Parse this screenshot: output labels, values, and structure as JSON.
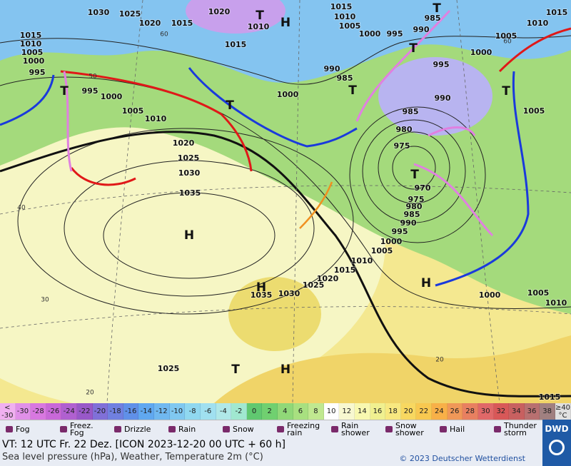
{
  "map": {
    "pressure_labels": [
      1030,
      1025,
      1020,
      1010,
      1015,
      1020,
      1015,
      1010,
      1005,
      1000,
      995,
      995,
      1000,
      1005,
      1010,
      1015,
      1015,
      1010,
      1005,
      1000,
      995,
      990,
      985,
      990,
      985,
      1000,
      990,
      985,
      980,
      975,
      970,
      975,
      980,
      985,
      990,
      995,
      1000,
      1005,
      1010,
      1015,
      1020,
      1025,
      1030,
      1035,
      1020,
      1025,
      1030,
      1035,
      1025,
      1015,
      1000,
      1005,
      1010,
      1000,
      1005,
      1010,
      1015,
      1005,
      995
    ],
    "systems": [
      "H",
      "H",
      "H",
      "H",
      "H",
      "T",
      "T",
      "T",
      "T",
      "T",
      "T",
      "T",
      "T",
      "T"
    ],
    "isotherm_labels": [
      40,
      30,
      20,
      20,
      50,
      60,
      60
    ]
  },
  "scale": {
    "under": {
      "symbol": "<",
      "label": "-30",
      "color": "#f0b0f0"
    },
    "values": [
      -30,
      -28,
      -26,
      -24,
      -22,
      -20,
      -18,
      -16,
      -14,
      -12,
      -10,
      -8,
      -6,
      -4,
      -2,
      0,
      2,
      4,
      6,
      8,
      10,
      12,
      14,
      16,
      18,
      20,
      22,
      24,
      26,
      28,
      30,
      32,
      34,
      36,
      38
    ],
    "colors": [
      "#e090e8",
      "#d878e0",
      "#c868d8",
      "#b060d0",
      "#9858c8",
      "#8070d8",
      "#7080e0",
      "#6090e8",
      "#60a8f0",
      "#70b8f0",
      "#80c8f0",
      "#90d8f0",
      "#a0e0f0",
      "#b0e8e8",
      "#a0e8d0",
      "#60c870",
      "#70d070",
      "#90d878",
      "#a8e080",
      "#c0e890",
      "#ffffff",
      "#f8f8d0",
      "#f8f8b0",
      "#f0f090",
      "#f8e880",
      "#f8d860",
      "#f8c850",
      "#f8b048",
      "#f09858",
      "#e88060",
      "#e06868",
      "#d85858",
      "#c86060",
      "#b87070",
      "#a08080"
    ],
    "over": {
      "symbol": "≥40",
      "label": "°C",
      "color": "#e0e0e0"
    }
  },
  "legend": [
    "Fog",
    "Freez.\nFog",
    "Drizzle",
    "Rain",
    "Snow",
    "Freezing\nrain",
    "Rain\nshower",
    "Snow\nshower",
    "Hail",
    "Thunder\nstorm"
  ],
  "footer": {
    "valid_time": "VT: 12 UTC Fr.  22 Dez. [ICON 2023-12-20  00 UTC + 60 h]",
    "description": "Sea level pressure (hPa), Weather, Temperature 2m (°C)",
    "copyright": "© 2023 Deutscher Wetterdienst",
    "logo": "DWD"
  }
}
